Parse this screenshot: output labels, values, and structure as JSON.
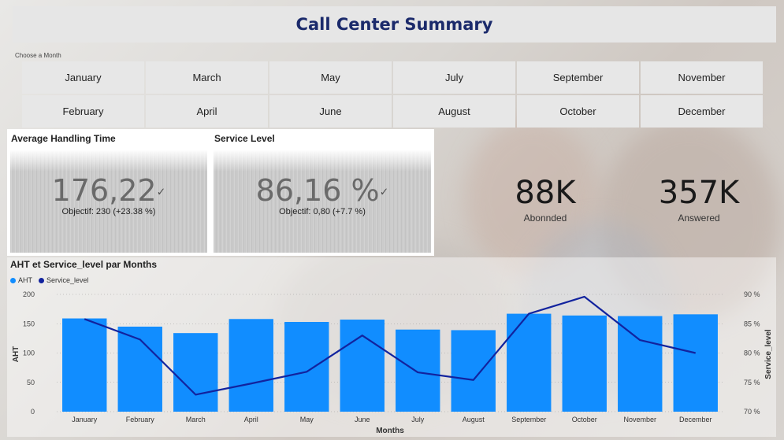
{
  "title": "Call Center Summary",
  "month_picker": {
    "label": "Choose a Month",
    "months": [
      "January",
      "March",
      "May",
      "July",
      "September",
      "November",
      "February",
      "April",
      "June",
      "August",
      "October",
      "December"
    ]
  },
  "kpi_aht": {
    "title": "Average Handling Time",
    "value": "176,22",
    "goal": "Objectif: 230 (+23.38 %)"
  },
  "kpi_sl": {
    "title": "Service Level",
    "value": "86,16 %",
    "goal": "Objectif: 0,80 (+7.7 %)"
  },
  "kpi_abandoned": {
    "value": "88K",
    "label": "Abonnded"
  },
  "kpi_answered": {
    "value": "357K",
    "label": "Answered"
  },
  "colors": {
    "bar": "#118dff",
    "line": "#12239e",
    "title": "#1b2a6b"
  },
  "chart_data": {
    "type": "bar",
    "title": "AHT et Service_level par Months",
    "legend": [
      "AHT",
      "Service_level"
    ],
    "categories": [
      "January",
      "February",
      "March",
      "April",
      "May",
      "June",
      "July",
      "August",
      "September",
      "October",
      "November",
      "December"
    ],
    "series": [
      {
        "name": "AHT",
        "axis": "left",
        "type": "bar",
        "values": [
          159,
          145,
          134,
          158,
          153,
          157,
          140,
          139,
          167,
          164,
          163,
          166
        ]
      },
      {
        "name": "Service_level",
        "axis": "right",
        "type": "line",
        "values": [
          85.8,
          82.3,
          72.9,
          74.8,
          76.8,
          83.0,
          76.7,
          75.4,
          86.7,
          89.6,
          82.2,
          80.0
        ]
      }
    ],
    "xlabel": "Months",
    "ylabel": "AHT",
    "ylabel_right": "Service_level",
    "ylim": [
      0,
      200
    ],
    "ylim_right": [
      70,
      90
    ],
    "yticks": [
      "0",
      "50",
      "100",
      "150",
      "200"
    ],
    "yticks_right": [
      "70 %",
      "75 %",
      "80 %",
      "85 %",
      "90 %"
    ]
  }
}
